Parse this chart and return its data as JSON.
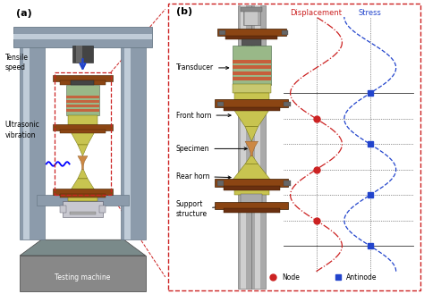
{
  "fig_width": 4.74,
  "fig_height": 3.29,
  "dpi": 100,
  "bg_color": "#ffffff",
  "label_a": "(a)",
  "label_b": "(b)",
  "tensile_speed_label": "Tensile\nspeed",
  "ultrasonic_label": "Ultrasonic\nvibration",
  "testing_machine_label": "Testing machine",
  "transducer_label": "Transducer",
  "front_horn_label": "Front horn",
  "specimen_label": "Specimen",
  "rear_horn_label": "Rear horn",
  "support_structure_label": "Support\nstructure",
  "displacement_label": "Displacement",
  "stress_label": "Stress",
  "node_label": "Node",
  "antinode_label": "Antinode",
  "red_color": "#cc2222",
  "blue_color": "#2244cc",
  "brown_color": "#8B4513",
  "machine_col": "#8c9bab",
  "machine_dark": "#6a7a88",
  "machine_base": "#888888",
  "yellow_green": "#c8c450",
  "light_green": "#99b888",
  "orange_red": "#cc5533",
  "shaft_col": "#aaaaaa",
  "grip_col": "#b8b8c0",
  "bolt_col": "#777788"
}
